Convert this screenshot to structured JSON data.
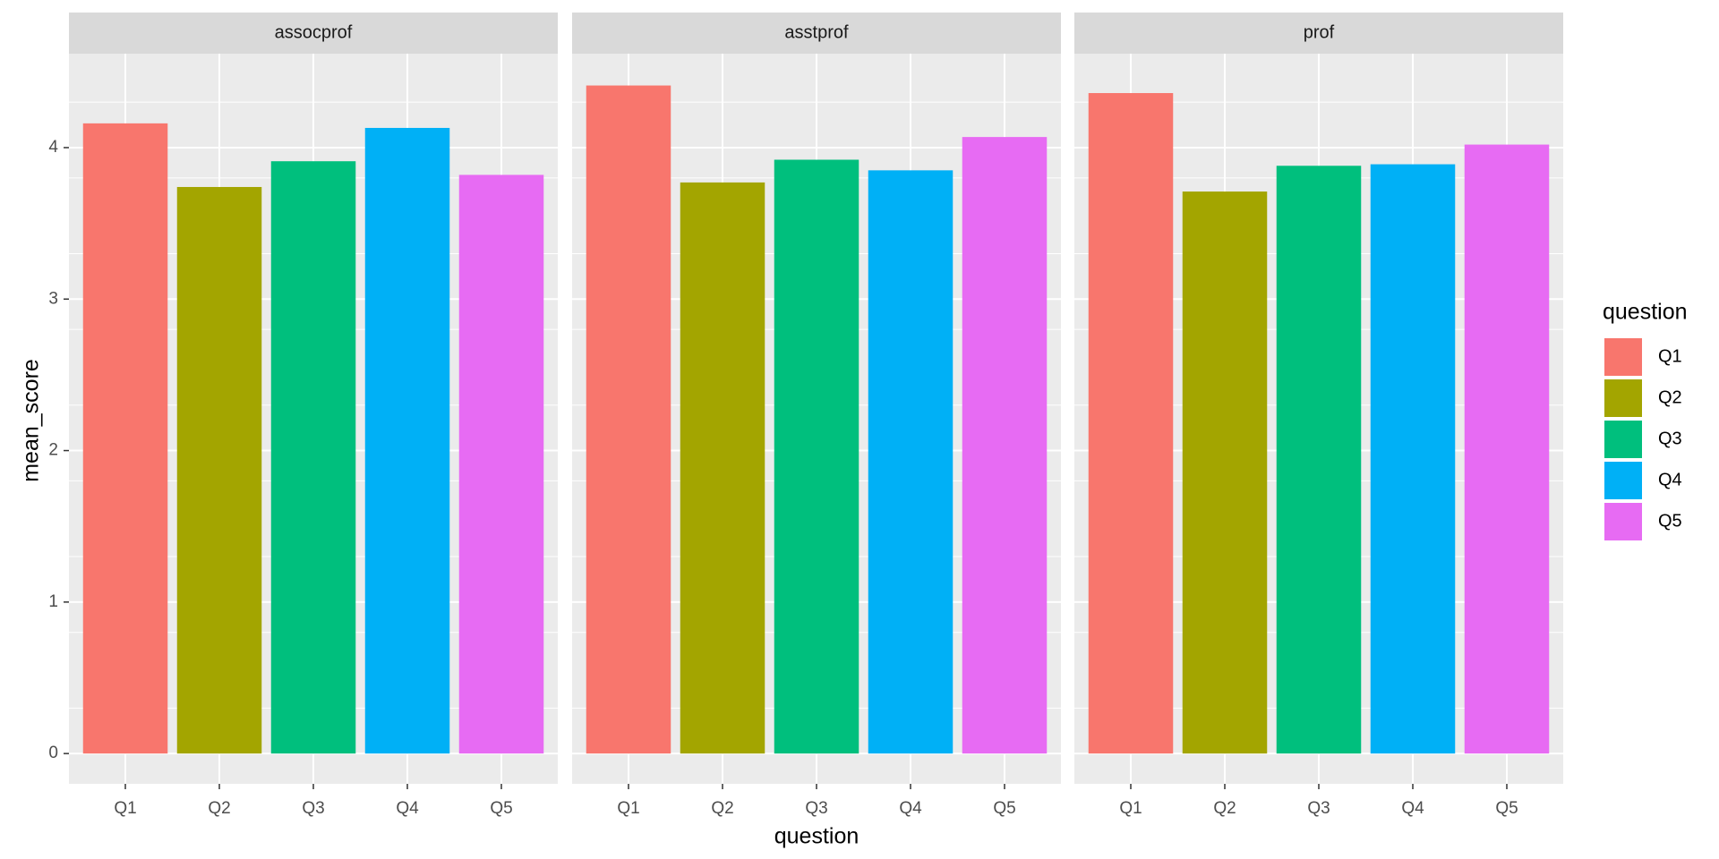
{
  "chart_data": {
    "type": "bar",
    "facets": [
      "assocprof",
      "asstprof",
      "prof"
    ],
    "categories": [
      "Q1",
      "Q2",
      "Q3",
      "Q4",
      "Q5"
    ],
    "panels": [
      {
        "facet": "assocprof",
        "values": [
          4.16,
          3.74,
          3.91,
          4.13,
          3.82
        ]
      },
      {
        "facet": "asstprof",
        "values": [
          4.41,
          3.77,
          3.92,
          3.85,
          4.07
        ]
      },
      {
        "facet": "prof",
        "values": [
          4.36,
          3.71,
          3.88,
          3.89,
          4.02
        ]
      }
    ],
    "xlabel": "question",
    "ylabel": "mean_score",
    "ylim": [
      -0.2,
      4.62
    ],
    "yticks": [
      0,
      1,
      2,
      3,
      4
    ],
    "grid": true,
    "legend": {
      "title": "question",
      "position": "right",
      "entries": [
        "Q1",
        "Q2",
        "Q3",
        "Q4",
        "Q5"
      ]
    },
    "colors": [
      "#F8766D",
      "#A3A500",
      "#00BF7D",
      "#00B0F6",
      "#E76BF3"
    ],
    "panel_background": "#EBEBEB",
    "strip_background": "#D9D9D9"
  }
}
